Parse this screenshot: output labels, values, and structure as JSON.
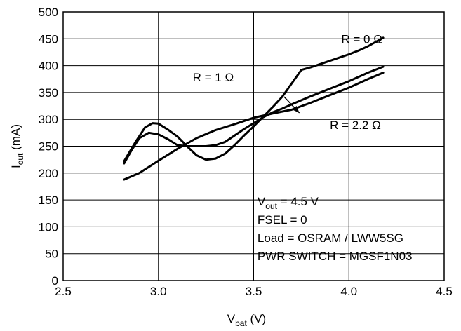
{
  "chart_data": {
    "type": "line",
    "xlabel": {
      "main": "V",
      "sub": "bat",
      "unit": " (V)"
    },
    "ylabel": {
      "main": "I",
      "sub": "out",
      "unit": " (mA)"
    },
    "xlim": [
      2.5,
      4.5
    ],
    "ylim": [
      0,
      500
    ],
    "x_ticks": [
      "2.5",
      "3.0",
      "3.5",
      "4.0",
      "4.5"
    ],
    "y_ticks": [
      "0",
      "50",
      "100",
      "150",
      "200",
      "250",
      "300",
      "350",
      "400",
      "450",
      "500"
    ],
    "grid": true,
    "series": [
      {
        "name": "R = 0 Ω",
        "x": [
          2.82,
          2.88,
          2.93,
          2.97,
          3.0,
          3.05,
          3.1,
          3.15,
          3.2,
          3.25,
          3.3,
          3.35,
          3.4,
          3.45,
          3.5,
          3.55,
          3.6,
          3.65,
          3.7,
          3.75,
          3.8,
          3.85,
          3.9,
          3.95,
          4.0,
          4.05,
          4.1,
          4.18
        ],
        "y": [
          222,
          258,
          285,
          293,
          292,
          281,
          268,
          250,
          233,
          225,
          227,
          236,
          252,
          270,
          287,
          305,
          323,
          342,
          367,
          392,
          397,
          403,
          409,
          415,
          421,
          428,
          436,
          452
        ]
      },
      {
        "name": "R = 1 Ω",
        "x": [
          2.82,
          2.86,
          2.9,
          2.95,
          3.0,
          3.05,
          3.1,
          3.15,
          3.2,
          3.25,
          3.3,
          3.35,
          3.4,
          3.45,
          3.5,
          3.55,
          3.6,
          3.65,
          3.7,
          3.8,
          3.9,
          4.0,
          4.1,
          4.18
        ],
        "y": [
          218,
          243,
          265,
          275,
          272,
          263,
          252,
          250,
          250,
          250,
          252,
          258,
          270,
          282,
          293,
          304,
          313,
          320,
          328,
          343,
          357,
          371,
          387,
          398
        ]
      },
      {
        "name": "R = 2.2 Ω",
        "x": [
          2.82,
          2.9,
          3.0,
          3.1,
          3.2,
          3.3,
          3.4,
          3.5,
          3.6,
          3.7,
          3.8,
          3.9,
          4.0,
          4.1,
          4.18
        ],
        "y": [
          188,
          200,
          223,
          245,
          265,
          280,
          291,
          303,
          311,
          318,
          331,
          345,
          359,
          375,
          387
        ]
      }
    ],
    "annotations": [
      {
        "text": "R = 0 Ω",
        "x": 3.96,
        "y": 442
      },
      {
        "text": "R = 1 Ω",
        "x": 3.18,
        "y": 371
      },
      {
        "text": "R = 2.2 Ω",
        "x": 3.9,
        "y": 282
      }
    ],
    "arrow": {
      "from": [
        3.66,
        342
      ],
      "to": [
        3.74,
        312
      ]
    },
    "conditions": [
      {
        "main": "V",
        "sub": "out",
        "rest": " = 4.5 V"
      },
      {
        "main": "FSEL = 0",
        "sub": "",
        "rest": ""
      },
      {
        "main": "Load = OSRAM / LWW5SG",
        "sub": "",
        "rest": ""
      },
      {
        "main": "PWR SWITCH = MGSF1N03",
        "sub": "",
        "rest": ""
      }
    ],
    "conditions_anchor": {
      "x": 3.52,
      "y_top": 140
    }
  }
}
